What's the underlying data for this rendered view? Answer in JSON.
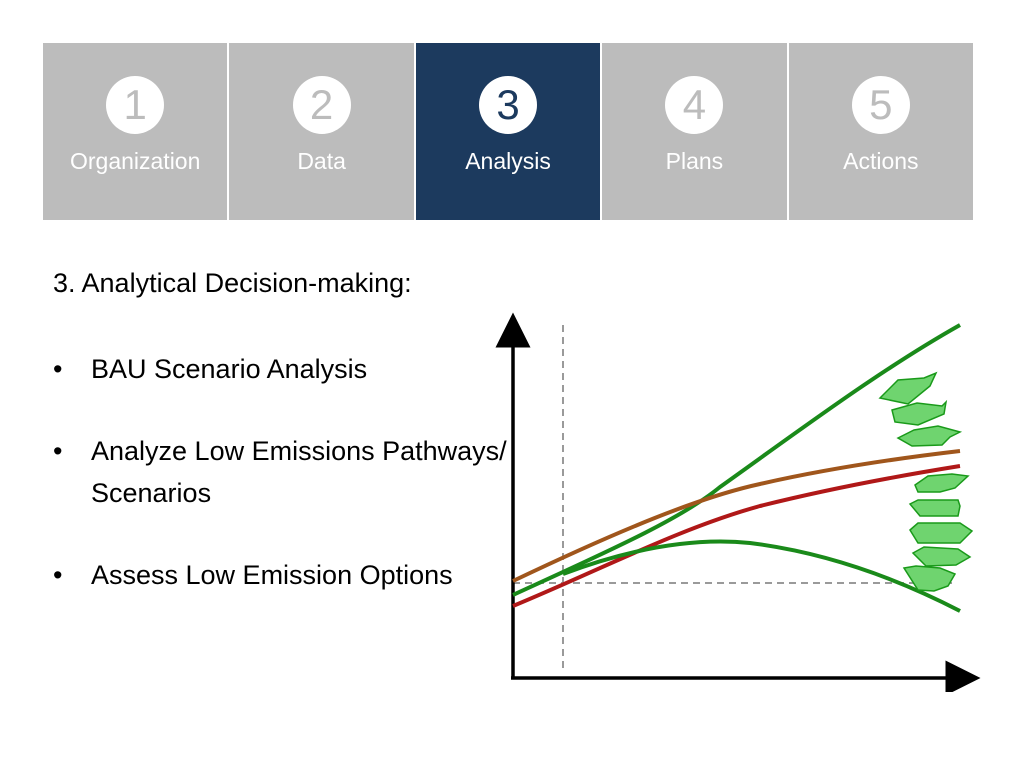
{
  "steps": [
    {
      "num": "1",
      "label": "Organization"
    },
    {
      "num": "2",
      "label": "Data"
    },
    {
      "num": "3",
      "label": "Analysis"
    },
    {
      "num": "4",
      "label": "Plans"
    },
    {
      "num": "5",
      "label": "Actions"
    }
  ],
  "active_step": "3",
  "content": {
    "heading": "3. Analytical Decision-making:",
    "bullet_glyph": "•",
    "bullets": [
      "BAU Scenario Analysis",
      "Analyze Low Emissions Pathways/ Scenarios",
      "Assess Low Emission Options"
    ]
  },
  "colors": {
    "step_inactive": "#bcbcbc",
    "step_active": "#1c3a5e",
    "curve_upper_green": "#1a8a1a",
    "curve_brown": "#a0561c",
    "curve_red": "#b01818",
    "curve_lower_green": "#1a8a1a",
    "arrow_fill": "#6fd46f",
    "arrow_stroke": "#1a9a1a"
  }
}
